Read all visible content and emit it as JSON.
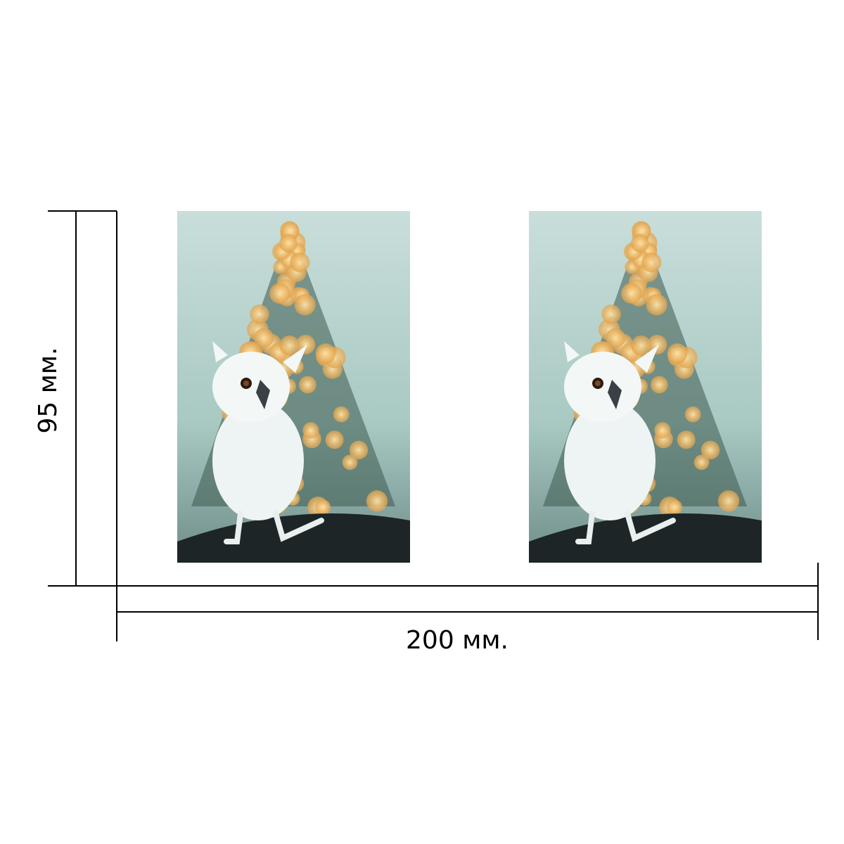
{
  "height_label": "95 мм.",
  "width_label": "200 мм."
}
